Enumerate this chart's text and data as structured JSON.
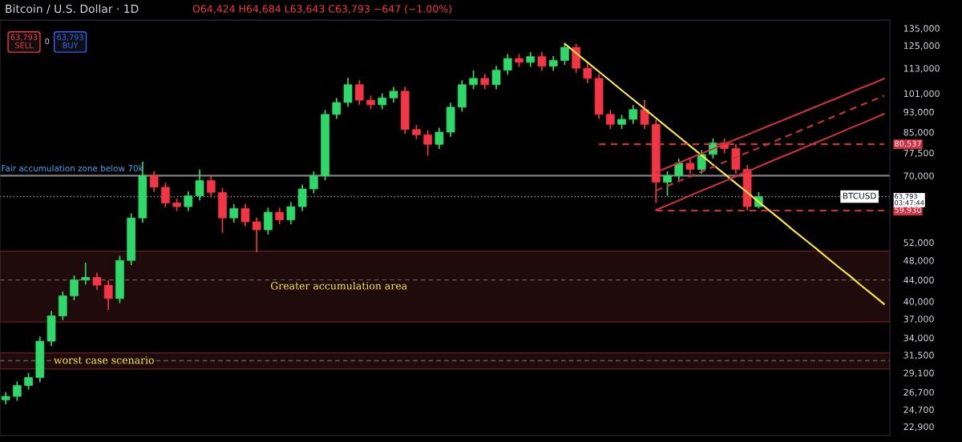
{
  "chart_data": {
    "type": "candlestick",
    "title": "Bitcoin / U.S. Dollar · 1D",
    "subtitle": "O64,424 H64,684 L63,643 C63,793 −647 (−1.00%)",
    "categories": [
      null,
      null,
      null,
      null,
      null,
      null,
      null,
      null,
      null,
      null,
      null,
      null,
      null,
      null,
      null,
      null,
      null,
      null,
      null,
      null,
      null,
      null,
      null,
      null,
      null,
      null,
      null,
      null,
      null,
      null,
      null,
      null,
      null,
      null,
      null,
      null,
      null,
      null,
      null,
      null,
      null,
      null,
      null,
      null,
      null,
      null,
      null,
      null,
      null,
      null,
      null,
      null,
      null,
      null,
      null,
      null,
      null,
      null,
      null,
      null,
      null,
      null,
      null,
      null,
      null,
      null,
      null,
      null,
      null,
      null,
      null,
      null,
      null,
      null,
      null,
      null,
      null,
      null
    ],
    "ohlc": [
      [
        25800,
        26700,
        25300,
        26200
      ],
      [
        26200,
        28000,
        25700,
        27500
      ],
      [
        27500,
        29100,
        27000,
        28500
      ],
      [
        28500,
        34200,
        27900,
        33500
      ],
      [
        33500,
        38300,
        32800,
        37500
      ],
      [
        37500,
        41800,
        36800,
        41000
      ],
      [
        41000,
        44900,
        40200,
        44000
      ],
      [
        44000,
        47500,
        43100,
        44500
      ],
      [
        44500,
        45400,
        42100,
        43000
      ],
      [
        43000,
        43900,
        38500,
        40500
      ],
      [
        40500,
        49000,
        39700,
        48000
      ],
      [
        48000,
        59200,
        47000,
        58000
      ],
      [
        58000,
        74500,
        56800,
        70000
      ],
      [
        70000,
        71400,
        65200,
        66500
      ],
      [
        66500,
        67800,
        60800,
        62000
      ],
      [
        62000,
        63200,
        59800,
        61000
      ],
      [
        61000,
        65300,
        59800,
        64000
      ],
      [
        64000,
        72000,
        62700,
        68500
      ],
      [
        68500,
        69900,
        63700,
        65000
      ],
      [
        65000,
        66300,
        54300,
        58000
      ],
      [
        58000,
        61700,
        56800,
        60500
      ],
      [
        60500,
        61700,
        55900,
        57000
      ],
      [
        57000,
        58100,
        49800,
        55000
      ],
      [
        55000,
        60700,
        53900,
        59500
      ],
      [
        59500,
        60700,
        56400,
        57500
      ],
      [
        57500,
        62200,
        56400,
        61000
      ],
      [
        61000,
        67300,
        59800,
        66000
      ],
      [
        66000,
        71400,
        64700,
        70000
      ],
      [
        70000,
        93800,
        68600,
        92000
      ],
      [
        92000,
        98900,
        90200,
        97000
      ],
      [
        97000,
        108200,
        95100,
        105000
      ],
      [
        105000,
        107100,
        96000,
        98000
      ],
      [
        98000,
        100000,
        94100,
        96000
      ],
      [
        96000,
        101000,
        94100,
        99000
      ],
      [
        99000,
        104000,
        97000,
        102000
      ],
      [
        102000,
        104000,
        84300,
        86000
      ],
      [
        86000,
        87700,
        82300,
        84000
      ],
      [
        84000,
        85700,
        76500,
        80500
      ],
      [
        80500,
        86700,
        78900,
        85000
      ],
      [
        85000,
        96900,
        83300,
        95000
      ],
      [
        95000,
        107100,
        93100,
        105000
      ],
      [
        105000,
        111900,
        102900,
        108000
      ],
      [
        108000,
        110200,
        102900,
        105000
      ],
      [
        105000,
        114200,
        102900,
        112000
      ],
      [
        112000,
        120400,
        109800,
        118000
      ],
      [
        118000,
        120400,
        113700,
        116000
      ],
      [
        116000,
        121400,
        113700,
        119000
      ],
      [
        119000,
        121400,
        111700,
        114000
      ],
      [
        114000,
        119300,
        111700,
        117000
      ],
      [
        117000,
        126000,
        114700,
        124000
      ],
      [
        124000,
        126000,
        110700,
        113000
      ],
      [
        113000,
        115300,
        105800,
        108000
      ],
      [
        108000,
        110200,
        90200,
        92000
      ],
      [
        92000,
        93800,
        86200,
        88000
      ],
      [
        88000,
        91800,
        86200,
        90000
      ],
      [
        90000,
        95900,
        88200,
        94000
      ],
      [
        94000,
        98000,
        86200,
        88000
      ],
      [
        88000,
        89800,
        62000,
        68000
      ],
      [
        68000,
        71400,
        64000,
        70000
      ],
      [
        70000,
        75500,
        68600,
        74000
      ],
      [
        74000,
        75500,
        70600,
        72000
      ],
      [
        72000,
        78500,
        70600,
        77000
      ],
      [
        77000,
        82600,
        75500,
        81000
      ],
      [
        81000,
        82600,
        77400,
        79000
      ],
      [
        79000,
        80600,
        70600,
        72000
      ],
      [
        72000,
        73400,
        59930,
        61000
      ],
      [
        61000,
        65100,
        60500,
        63793
      ],
      null,
      null,
      null,
      null,
      null,
      null,
      null,
      null,
      null,
      null,
      null
    ],
    "colors": [
      "#2ed96a",
      "#2ed96a",
      "#2ed96a",
      "#2ed96a",
      "#2ed96a",
      "#2ed96a",
      "#2ed96a",
      "#2ed96a",
      "#f23645",
      "#f23645",
      "#2ed96a",
      "#2ed96a",
      "#2ed96a",
      "#f23645",
      "#f23645",
      "#f23645",
      "#2ed96a",
      "#2ed96a",
      "#f23645",
      "#f23645",
      "#2ed96a",
      "#f23645",
      "#f23645",
      "#2ed96a",
      "#f23645",
      "#2ed96a",
      "#2ed96a",
      "#2ed96a",
      "#2ed96a",
      "#2ed96a",
      "#2ed96a",
      "#f23645",
      "#f23645",
      "#2ed96a",
      "#2ed96a",
      "#f23645",
      "#f23645",
      "#f23645",
      "#2ed96a",
      "#2ed96a",
      "#2ed96a",
      "#2ed96a",
      "#f23645",
      "#2ed96a",
      "#2ed96a",
      "#f23645",
      "#2ed96a",
      "#f23645",
      "#2ed96a",
      "#2ed96a",
      "#f23645",
      "#f23645",
      "#f23645",
      "#f23645",
      "#2ed96a",
      "#2ed96a",
      "#f23645",
      "#f23645",
      "#2ed96a",
      "#2ed96a",
      "#f23645",
      "#2ed96a",
      "#2ed96a",
      "#f23645",
      "#f23645",
      "#f23645",
      "#2ed96a",
      null,
      null,
      null,
      null,
      null,
      null,
      null,
      null,
      null,
      null,
      null
    ],
    "series": [
      {
        "type": "line",
        "color": "#ffeb3b",
        "values": [
          null,
          null,
          null,
          null,
          null,
          null,
          null,
          null,
          null,
          null,
          null,
          null,
          null,
          null,
          null,
          null,
          null,
          null,
          null,
          null,
          null,
          null,
          null,
          null,
          null,
          null,
          null,
          null,
          null,
          null,
          null,
          null,
          null,
          null,
          null,
          null,
          null,
          null,
          null,
          null,
          null,
          null,
          null,
          null,
          null,
          null,
          null,
          null,
          null,
          126000,
          120900,
          116000,
          111300,
          106800,
          102400,
          98300,
          94300,
          90500,
          86800,
          83300,
          79900,
          76700,
          73500,
          70600,
          67700,
          65000,
          62300,
          59800,
          57400,
          55000,
          52800,
          50700,
          48600,
          46600,
          44800,
          42900,
          41200,
          39500
        ]
      },
      {
        "type": "line",
        "color": "#d32f3f",
        "values": [
          null,
          null,
          null,
          null,
          null,
          null,
          null,
          null,
          null,
          null,
          null,
          null,
          null,
          null,
          null,
          null,
          null,
          null,
          null,
          null,
          null,
          null,
          null,
          null,
          null,
          null,
          null,
          null,
          null,
          null,
          null,
          null,
          null,
          null,
          null,
          null,
          null,
          null,
          null,
          null,
          null,
          null,
          null,
          null,
          null,
          null,
          null,
          null,
          null,
          null,
          null,
          null,
          null,
          null,
          null,
          null,
          null,
          71100,
          72600,
          74100,
          75700,
          77300,
          78900,
          80600,
          82300,
          84000,
          85800,
          87600,
          89400,
          91300,
          93200,
          95200,
          97200,
          99200,
          101300,
          103500,
          105600,
          107900
        ]
      },
      {
        "type": "line",
        "color": "#d32f3f",
        "line_style": "dashed",
        "values": [
          null,
          null,
          null,
          null,
          null,
          null,
          null,
          null,
          null,
          null,
          null,
          null,
          null,
          null,
          null,
          null,
          null,
          null,
          null,
          null,
          null,
          null,
          null,
          null,
          null,
          null,
          null,
          null,
          null,
          null,
          null,
          null,
          null,
          null,
          null,
          null,
          null,
          null,
          null,
          null,
          null,
          null,
          null,
          null,
          null,
          null,
          null,
          null,
          null,
          null,
          null,
          null,
          null,
          null,
          null,
          null,
          null,
          65500,
          66900,
          68300,
          69800,
          71300,
          72800,
          74400,
          76000,
          77600,
          79200,
          80900,
          82700,
          84400,
          86200,
          88100,
          90000,
          91900,
          93900,
          95900,
          97900,
          100000
        ]
      },
      {
        "type": "line",
        "color": "#d32f3f",
        "values": [
          null,
          null,
          null,
          null,
          null,
          null,
          null,
          null,
          null,
          null,
          null,
          null,
          null,
          null,
          null,
          null,
          null,
          null,
          null,
          null,
          null,
          null,
          null,
          null,
          null,
          null,
          null,
          null,
          null,
          null,
          null,
          null,
          null,
          null,
          null,
          null,
          null,
          null,
          null,
          null,
          null,
          null,
          null,
          null,
          null,
          null,
          null,
          null,
          null,
          null,
          null,
          null,
          null,
          null,
          null,
          null,
          null,
          60100,
          61400,
          62700,
          64100,
          65500,
          66900,
          68300,
          69800,
          71300,
          72900,
          74500,
          76100,
          77700,
          79400,
          81100,
          82800,
          84600,
          86500,
          88300,
          90200,
          92200
        ]
      },
      {
        "type": "line",
        "color": "#d32f3f",
        "line_style": "dashed",
        "values": [
          null,
          null,
          null,
          null,
          null,
          null,
          null,
          null,
          null,
          null,
          null,
          null,
          null,
          null,
          null,
          null,
          null,
          null,
          null,
          null,
          null,
          null,
          null,
          null,
          null,
          null,
          null,
          null,
          null,
          null,
          null,
          null,
          null,
          null,
          null,
          null,
          null,
          null,
          null,
          null,
          null,
          null,
          null,
          null,
          null,
          null,
          null,
          null,
          null,
          null,
          null,
          null,
          80537,
          80537,
          80537,
          80537,
          80537,
          80537,
          80537,
          80537,
          80537,
          80537,
          80537,
          80537,
          80537,
          80537,
          80537,
          80537,
          80537,
          80537,
          80537,
          80537,
          80537,
          80537,
          80537,
          80537,
          80537,
          80537
        ],
        "value_labels": [
          null,
          null,
          null,
          null,
          null,
          null,
          null,
          null,
          null,
          null,
          null,
          null,
          null,
          null,
          null,
          null,
          null,
          null,
          null,
          null,
          null,
          null,
          null,
          null,
          null,
          null,
          null,
          null,
          null,
          null,
          null,
          null,
          null,
          null,
          null,
          null,
          null,
          null,
          null,
          null,
          null,
          null,
          null,
          null,
          null,
          null,
          null,
          null,
          null,
          null,
          null,
          null,
          null,
          null,
          null,
          null,
          null,
          null,
          null,
          null,
          null,
          null,
          null,
          null,
          null,
          null,
          null,
          null,
          null,
          null,
          null,
          null,
          null,
          null,
          null,
          null,
          null,
          "80,537"
        ]
      },
      {
        "type": "line",
        "color": "#d32f3f",
        "line_style": "dashed",
        "values": [
          null,
          null,
          null,
          null,
          null,
          null,
          null,
          null,
          null,
          null,
          null,
          null,
          null,
          null,
          null,
          null,
          null,
          null,
          null,
          null,
          null,
          null,
          null,
          null,
          null,
          null,
          null,
          null,
          null,
          null,
          null,
          null,
          null,
          null,
          null,
          null,
          null,
          null,
          null,
          null,
          null,
          null,
          null,
          null,
          null,
          null,
          null,
          null,
          null,
          null,
          null,
          null,
          null,
          null,
          null,
          null,
          null,
          59930,
          59930,
          59930,
          59930,
          59930,
          59930,
          59930,
          59930,
          59930,
          59930,
          59930,
          59930,
          59930,
          59930,
          59930,
          59930,
          59930,
          59930,
          59930,
          59930,
          59930
        ],
        "value_labels": [
          null,
          null,
          null,
          null,
          null,
          null,
          null,
          null,
          null,
          null,
          null,
          null,
          null,
          null,
          null,
          null,
          null,
          null,
          null,
          null,
          null,
          null,
          null,
          null,
          null,
          null,
          null,
          null,
          null,
          null,
          null,
          null,
          null,
          null,
          null,
          null,
          null,
          null,
          null,
          null,
          null,
          null,
          null,
          null,
          null,
          null,
          null,
          null,
          null,
          null,
          null,
          null,
          null,
          null,
          null,
          null,
          null,
          null,
          null,
          null,
          null,
          null,
          null,
          null,
          null,
          null,
          null,
          null,
          null,
          null,
          null,
          null,
          null,
          null,
          null,
          null,
          null,
          "59,930"
        ]
      }
    ],
    "ref_lines": [
      {
        "axis": "y",
        "value": 70000,
        "label": "Fair accumulation zone below 70k",
        "color": "#808080",
        "line_style": "solid"
      },
      {
        "axis": "y",
        "value": 63793,
        "label": "BTCUSD",
        "color": "#9e9e9e",
        "line_style": "dotted"
      },
      {
        "axis": "y",
        "value": 44000,
        "color": "#6e5a5a",
        "line_style": "dashed"
      },
      {
        "axis": "y",
        "value": 30700,
        "color": "#6e5a5a",
        "line_style": "dashed"
      }
    ],
    "bands": [
      {
        "axis": "y",
        "from": 36500,
        "to": 50000,
        "label": "Greater accumulation area",
        "color": "#1f0b0c"
      },
      {
        "axis": "y",
        "from": 29600,
        "to": 31800,
        "label": "worst case scenario",
        "color": "#1f0b0c"
      }
    ],
    "annotations": [
      "63,793\n03:47:44",
      "63,793\nSELL",
      "0",
      "63,793\nBUY"
    ],
    "ylim": [
      22000,
      140000
    ],
    "log": true,
    "yticks": [
      {
        "value": 22900,
        "label": "22,900"
      },
      {
        "value": 24700,
        "label": "24,700"
      },
      {
        "value": 26700,
        "label": "26,700"
      },
      {
        "value": 29100,
        "label": "29,100"
      },
      {
        "value": 31500,
        "label": "31,500"
      },
      {
        "value": 34000,
        "label": "34,000"
      },
      {
        "value": 37000,
        "label": "37,000"
      },
      {
        "value": 40000,
        "label": "40,000"
      },
      {
        "value": 44000,
        "label": "44,000"
      },
      {
        "value": 48000,
        "label": "48,000"
      },
      {
        "value": 52000,
        "label": "52,000"
      },
      {
        "value": 70000,
        "label": "70,000"
      },
      {
        "value": 77500,
        "label": "77,500"
      },
      {
        "value": 85000,
        "label": "85,000"
      },
      {
        "value": 93000,
        "label": "93,000"
      },
      {
        "value": 101000,
        "label": "101,000"
      },
      {
        "value": 113000,
        "label": "113,000"
      },
      {
        "value": 125000,
        "label": "125,000"
      },
      {
        "value": 135000,
        "label": "135,000"
      }
    ],
    "tick_labels": "y",
    "grid": false,
    "legend": false
  }
}
